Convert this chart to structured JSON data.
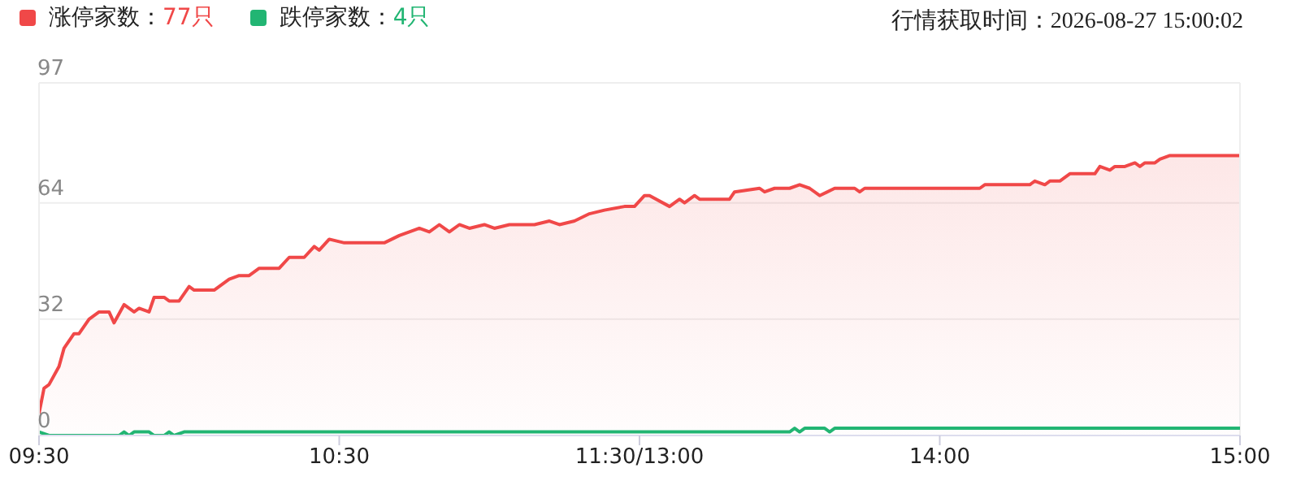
{
  "chart_data": {
    "type": "area",
    "annotations": [
      "行情获取时间：2026-08-27 15:00:02"
    ],
    "categories": [
      "09:30",
      null,
      null,
      null,
      null,
      null,
      null,
      null,
      null,
      null,
      null,
      null,
      null,
      null,
      null,
      null,
      null,
      null,
      null,
      null,
      null,
      null,
      null,
      null,
      null,
      null,
      null,
      null,
      null,
      null,
      null,
      null,
      null,
      null,
      null,
      null,
      null,
      null,
      null,
      null,
      null,
      null,
      null,
      null,
      null,
      null,
      null,
      null,
      null,
      null,
      null,
      null,
      null,
      null,
      null,
      null,
      null,
      null,
      null,
      null,
      "10:30",
      null,
      null,
      null,
      null,
      null,
      null,
      null,
      null,
      null,
      null,
      null,
      null,
      null,
      null,
      null,
      null,
      null,
      null,
      null,
      null,
      null,
      null,
      null,
      null,
      null,
      null,
      null,
      null,
      null,
      null,
      null,
      null,
      null,
      null,
      null,
      null,
      null,
      null,
      null,
      null,
      null,
      null,
      null,
      null,
      null,
      null,
      null,
      null,
      null,
      null,
      null,
      null,
      null,
      null,
      null,
      null,
      null,
      null,
      null,
      "11:30/13:00",
      null,
      null,
      null,
      null,
      null,
      null,
      null,
      null,
      null,
      null,
      null,
      null,
      null,
      null,
      null,
      null,
      null,
      null,
      null,
      null,
      null,
      null,
      null,
      null,
      null,
      null,
      null,
      null,
      null,
      null,
      null,
      null,
      null,
      null,
      null,
      null,
      null,
      null,
      null,
      null,
      null,
      null,
      null,
      null,
      null,
      null,
      null,
      null,
      null,
      null,
      null,
      null,
      null,
      null,
      null,
      null,
      null,
      null,
      null,
      "14:00",
      null,
      null,
      null,
      null,
      null,
      null,
      null,
      null,
      null,
      null,
      null,
      null,
      null,
      null,
      null,
      null,
      null,
      null,
      null,
      null,
      null,
      null,
      null,
      null,
      null,
      null,
      null,
      null,
      null,
      null,
      null,
      null,
      null,
      null,
      null,
      null,
      null,
      null,
      null,
      null,
      null,
      null,
      null,
      null,
      null,
      null,
      null,
      null,
      null,
      null,
      null,
      null,
      null,
      null,
      null,
      null,
      null,
      null,
      null,
      "15:00"
    ],
    "ylim": [
      0,
      97
    ],
    "yticks": [
      0,
      32,
      64,
      97
    ],
    "grid": "y",
    "legend": "top left",
    "marker": "none",
    "line_style": "solid",
    "series": [
      {
        "name": "涨停家数：77只",
        "color": "#f04848",
        "values": [
          6,
          13,
          14,
          null,
          19,
          24,
          null,
          28,
          28,
          null,
          32,
          null,
          34,
          null,
          34,
          31,
          null,
          36,
          null,
          34,
          35,
          null,
          34,
          38,
          null,
          38,
          37,
          null,
          37,
          null,
          41,
          40,
          null,
          null,
          null,
          40,
          null,
          null,
          43,
          null,
          44,
          null,
          44,
          null,
          46,
          null,
          null,
          null,
          46,
          null,
          49,
          null,
          null,
          49,
          null,
          52,
          51,
          null,
          54,
          null,
          null,
          53,
          null,
          null,
          53,
          null,
          null,
          null,
          null,
          53,
          null,
          null,
          55,
          null,
          null,
          null,
          57,
          null,
          56,
          null,
          58,
          null,
          56,
          null,
          58,
          null,
          57,
          null,
          null,
          58,
          null,
          57,
          null,
          null,
          58,
          null,
          null,
          null,
          null,
          58,
          null,
          null,
          59,
          null,
          58,
          null,
          null,
          59,
          null,
          null,
          61,
          null,
          null,
          62,
          null,
          null,
          null,
          63,
          null,
          63,
          null,
          66,
          66,
          null,
          null,
          null,
          63,
          null,
          65,
          64,
          null,
          66,
          65,
          null,
          null,
          null,
          null,
          null,
          65,
          67,
          null,
          null,
          null,
          null,
          68,
          67,
          null,
          68,
          null,
          null,
          68,
          null,
          69,
          null,
          68,
          null,
          66,
          null,
          null,
          68,
          null,
          null,
          null,
          68,
          67,
          68,
          null,
          null,
          null,
          null,
          null,
          null,
          null,
          null,
          null,
          null,
          null,
          null,
          null,
          null,
          null,
          null,
          null,
          null,
          null,
          null,
          null,
          null,
          68,
          69,
          null,
          null,
          null,
          null,
          null,
          null,
          null,
          null,
          69,
          70,
          null,
          69,
          70,
          null,
          70,
          null,
          72,
          null,
          null,
          null,
          null,
          72,
          74,
          null,
          73,
          74,
          null,
          74,
          null,
          75,
          74,
          75,
          null,
          75,
          76,
          null,
          77,
          null,
          null,
          null,
          null,
          null,
          null,
          null,
          null,
          null,
          null,
          null,
          null,
          null,
          77
        ]
      },
      {
        "name": "跌停家数：4只",
        "type": "line",
        "color": "#22b573",
        "values": [
          1,
          null,
          0,
          null,
          null,
          null,
          null,
          null,
          null,
          null,
          null,
          null,
          null,
          null,
          null,
          null,
          0,
          1,
          0,
          1,
          null,
          null,
          1,
          0,
          null,
          0,
          1,
          0,
          null,
          1,
          null,
          null,
          null,
          null,
          null,
          null,
          null,
          null,
          null,
          null,
          null,
          null,
          null,
          null,
          null,
          null,
          null,
          null,
          null,
          null,
          null,
          null,
          null,
          null,
          null,
          null,
          null,
          null,
          null,
          null,
          null,
          null,
          null,
          null,
          null,
          null,
          null,
          null,
          null,
          null,
          null,
          null,
          null,
          null,
          null,
          null,
          null,
          null,
          null,
          null,
          null,
          null,
          null,
          null,
          null,
          null,
          null,
          null,
          null,
          null,
          null,
          null,
          null,
          null,
          null,
          null,
          null,
          null,
          null,
          null,
          null,
          null,
          null,
          null,
          null,
          null,
          null,
          null,
          null,
          null,
          null,
          null,
          null,
          null,
          null,
          null,
          null,
          null,
          null,
          null,
          null,
          null,
          null,
          null,
          null,
          null,
          null,
          null,
          null,
          null,
          null,
          null,
          null,
          null,
          null,
          null,
          null,
          null,
          null,
          null,
          null,
          null,
          null,
          null,
          null,
          null,
          null,
          null,
          null,
          null,
          1,
          2,
          1,
          2,
          null,
          null,
          null,
          2,
          1,
          2,
          null,
          null,
          null,
          null,
          null,
          null,
          null,
          null,
          null,
          null,
          null,
          null,
          null,
          null,
          null,
          null,
          null,
          null,
          null,
          null,
          null,
          null,
          null,
          null,
          null,
          null,
          null,
          null,
          null,
          null,
          null,
          null,
          null,
          null,
          null,
          null,
          null,
          null,
          null,
          null,
          null,
          null,
          null,
          null,
          null,
          null,
          null,
          null,
          null,
          null,
          null,
          null,
          null,
          null,
          null,
          null,
          null,
          null,
          null,
          null,
          null,
          null,
          null,
          null,
          null,
          null,
          null,
          null,
          null,
          null,
          null,
          null,
          null,
          null,
          null,
          null,
          null,
          null,
          null,
          null,
          2
        ]
      }
    ]
  }
}
